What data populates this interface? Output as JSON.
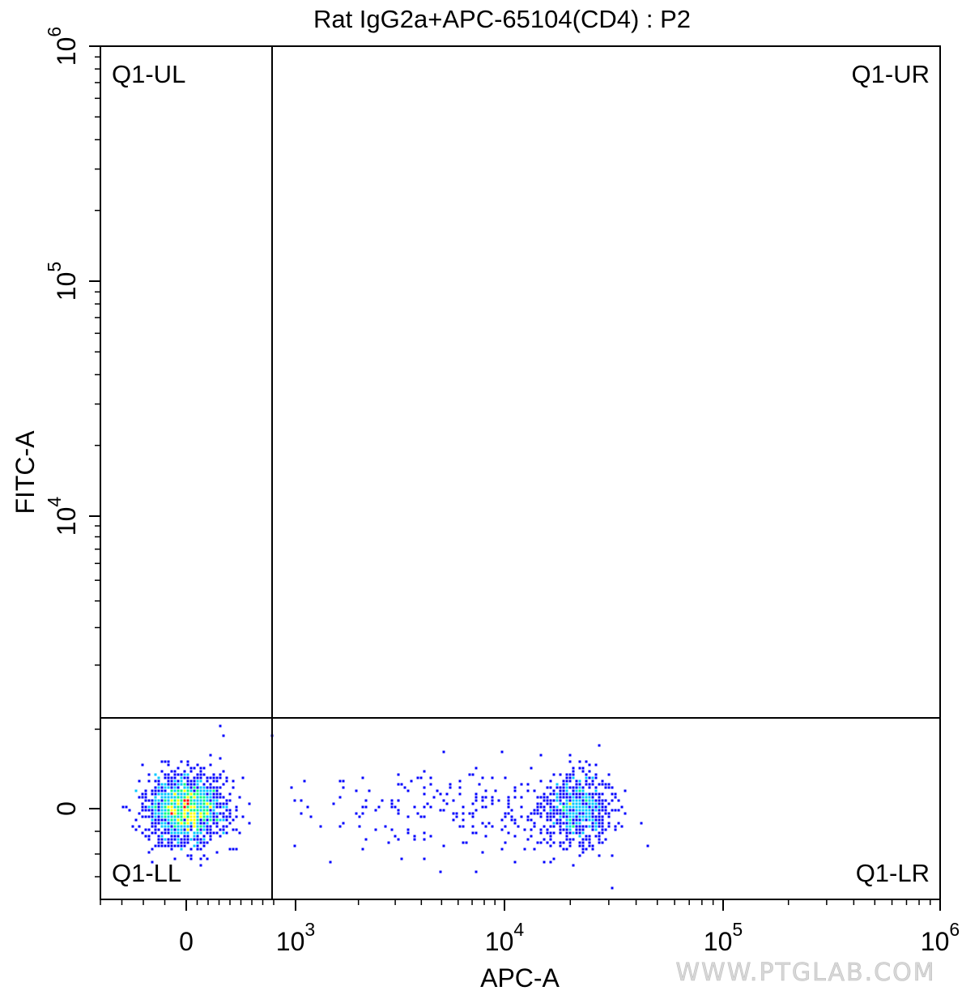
{
  "chart_data": {
    "type": "scatter",
    "title": "Rat IgG2a+APC-65104(CD4) : P2",
    "xlabel": "APC-A",
    "ylabel": "FITC-A",
    "x_scale": "biexponential",
    "y_scale": "biexponential",
    "x_ticks": [
      {
        "value": 0,
        "base": "0",
        "exp": ""
      },
      {
        "value": 1000,
        "base": "10",
        "exp": "3"
      },
      {
        "value": 10000,
        "base": "10",
        "exp": "4"
      },
      {
        "value": 100000,
        "base": "10",
        "exp": "5"
      },
      {
        "value": 1000000,
        "base": "10",
        "exp": "6"
      }
    ],
    "y_ticks": [
      {
        "value": 0,
        "base": "0",
        "exp": ""
      },
      {
        "value": 10000,
        "base": "10",
        "exp": "4"
      },
      {
        "value": 100000,
        "base": "10",
        "exp": "5"
      },
      {
        "value": 1000000,
        "base": "10",
        "exp": "6"
      }
    ],
    "quadrants": [
      {
        "name": "Q1-UL",
        "position": "top-left"
      },
      {
        "name": "Q1-UR",
        "position": "top-right"
      },
      {
        "name": "Q1-LL",
        "position": "bottom-left"
      },
      {
        "name": "Q1-LR",
        "position": "bottom-right"
      }
    ],
    "gate": {
      "x": 800,
      "y": 2500
    },
    "populations": [
      {
        "name": "negative",
        "x_center": 0,
        "y_center": 0,
        "density": "high"
      },
      {
        "name": "positive",
        "x_center": 22000,
        "y_center": 0,
        "density": "medium"
      }
    ],
    "colors": {
      "density_low": "#0000ff",
      "density_mid_low": "#00c8ff",
      "density_mid": "#00ff80",
      "density_high": "#ffff00",
      "density_peak": "#ff0000"
    }
  },
  "watermark": "WWW.PTGLAB.COM"
}
